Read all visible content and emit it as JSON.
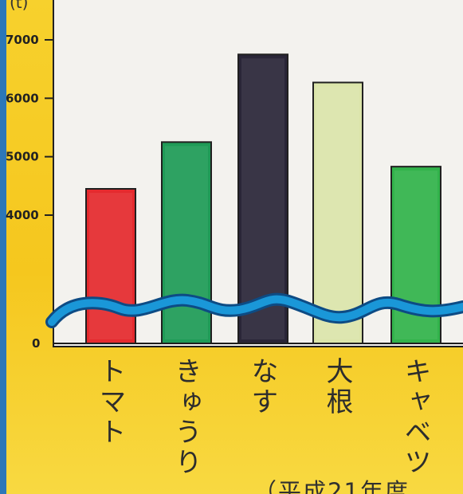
{
  "chart_data": {
    "type": "bar",
    "title": "",
    "xlabel": "",
    "ylabel": "",
    "y_unit": "(t)",
    "ylim": [
      0,
      7400
    ],
    "ticks": [
      0,
      4000,
      5000,
      6000,
      7000
    ],
    "ticks_text": [
      "0",
      "4000",
      "5000",
      "6000",
      "7000"
    ],
    "axis_break": true,
    "categories": [
      "トマト",
      "きゅうり",
      "なす",
      "大根",
      "キャベツ"
    ],
    "values": [
      4450,
      5250,
      6750,
      6270,
      4830
    ],
    "colors": [
      "#e52a2e",
      "#1f9b57",
      "#2a2638",
      "#dbe5aa",
      "#32b34b"
    ],
    "grid": false,
    "legend": "none"
  },
  "footnote": "（平成21年度"
}
